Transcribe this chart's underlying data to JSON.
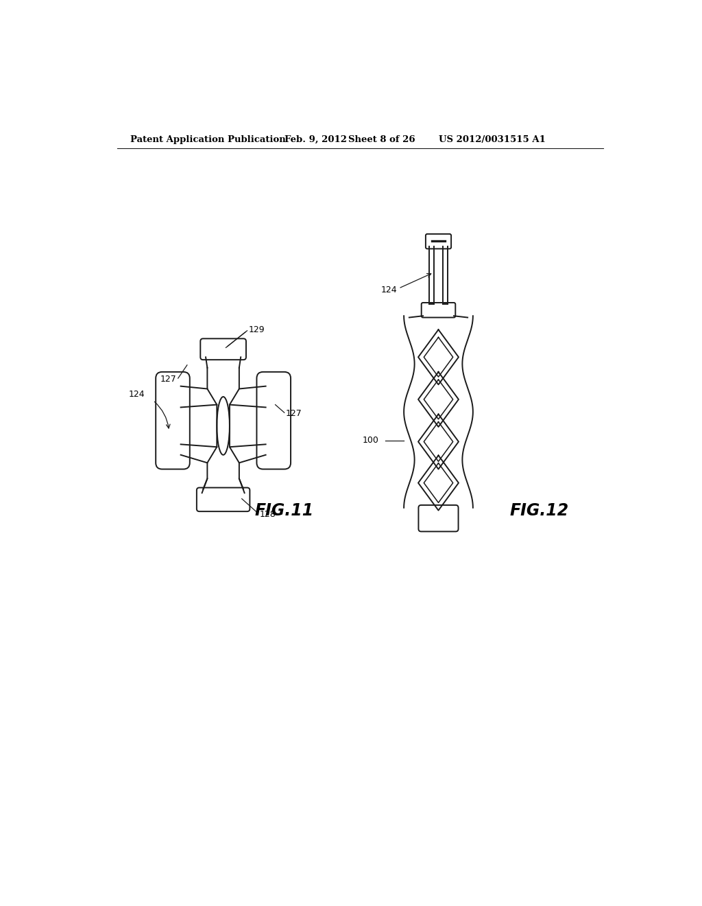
{
  "background_color": "#ffffff",
  "header_text": "Patent Application Publication",
  "header_date": "Feb. 9, 2012",
  "header_sheet": "Sheet 8 of 26",
  "header_patent": "US 2012/0031515 A1",
  "fig11_label": "FIG.11",
  "fig12_label": "FIG.12",
  "label_129": "129",
  "label_127a": "127",
  "label_127b": "127",
  "label_124a": "124",
  "label_128": "128",
  "label_124b": "124",
  "label_100": "100",
  "line_color": "#1a1a1a",
  "line_width": 1.2
}
